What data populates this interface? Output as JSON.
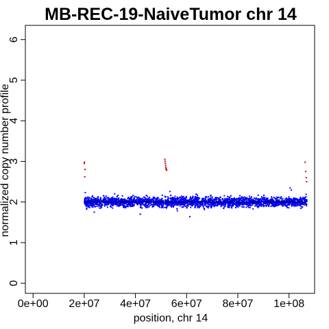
{
  "chart_data": {
    "type": "scatter",
    "title": "MB-REC-19-NaiveTumor chr 14",
    "xlabel": "position, chr 14",
    "ylabel": "normalized copy number profile",
    "xlim": [
      -3000000,
      110000000
    ],
    "ylim": [
      -0.25,
      6.35
    ],
    "x_ticks": [
      0,
      20000000,
      40000000,
      60000000,
      80000000,
      100000000
    ],
    "x_tick_labels": [
      "0e+00",
      "2e+07",
      "4e+07",
      "6e+07",
      "8e+07",
      "1e+08"
    ],
    "y_ticks": [
      0,
      1,
      2,
      3,
      4,
      5,
      6
    ],
    "y_tick_labels": [
      "0",
      "1",
      "2",
      "3",
      "4",
      "5",
      "6"
    ],
    "grid": false,
    "colors": {
      "points": "#0000ff",
      "outliers": "#cc0000",
      "segment": "#000000"
    },
    "series": [
      {
        "kind": "points",
        "x_range": [
          20000000,
          107000000
        ],
        "baseline": 2.0,
        "spread": 0.12,
        "approx_count": 3000
      },
      {
        "kind": "segment",
        "x": [
          20000000,
          107000000
        ],
        "y": [
          2.0,
          2.0
        ]
      },
      {
        "kind": "outliers",
        "x": [
          20000000,
          20100000,
          20200000,
          20300000,
          51500000,
          51600000,
          51700000,
          51800000,
          51900000,
          52000000,
          52100000,
          52200000,
          106300000,
          106500000,
          106700000,
          106900000
        ],
        "y": [
          2.95,
          2.98,
          2.62,
          2.8,
          3.05,
          3.0,
          2.95,
          2.9,
          2.85,
          2.82,
          2.8,
          2.78,
          2.98,
          2.75,
          2.6,
          2.5
        ]
      }
    ]
  }
}
